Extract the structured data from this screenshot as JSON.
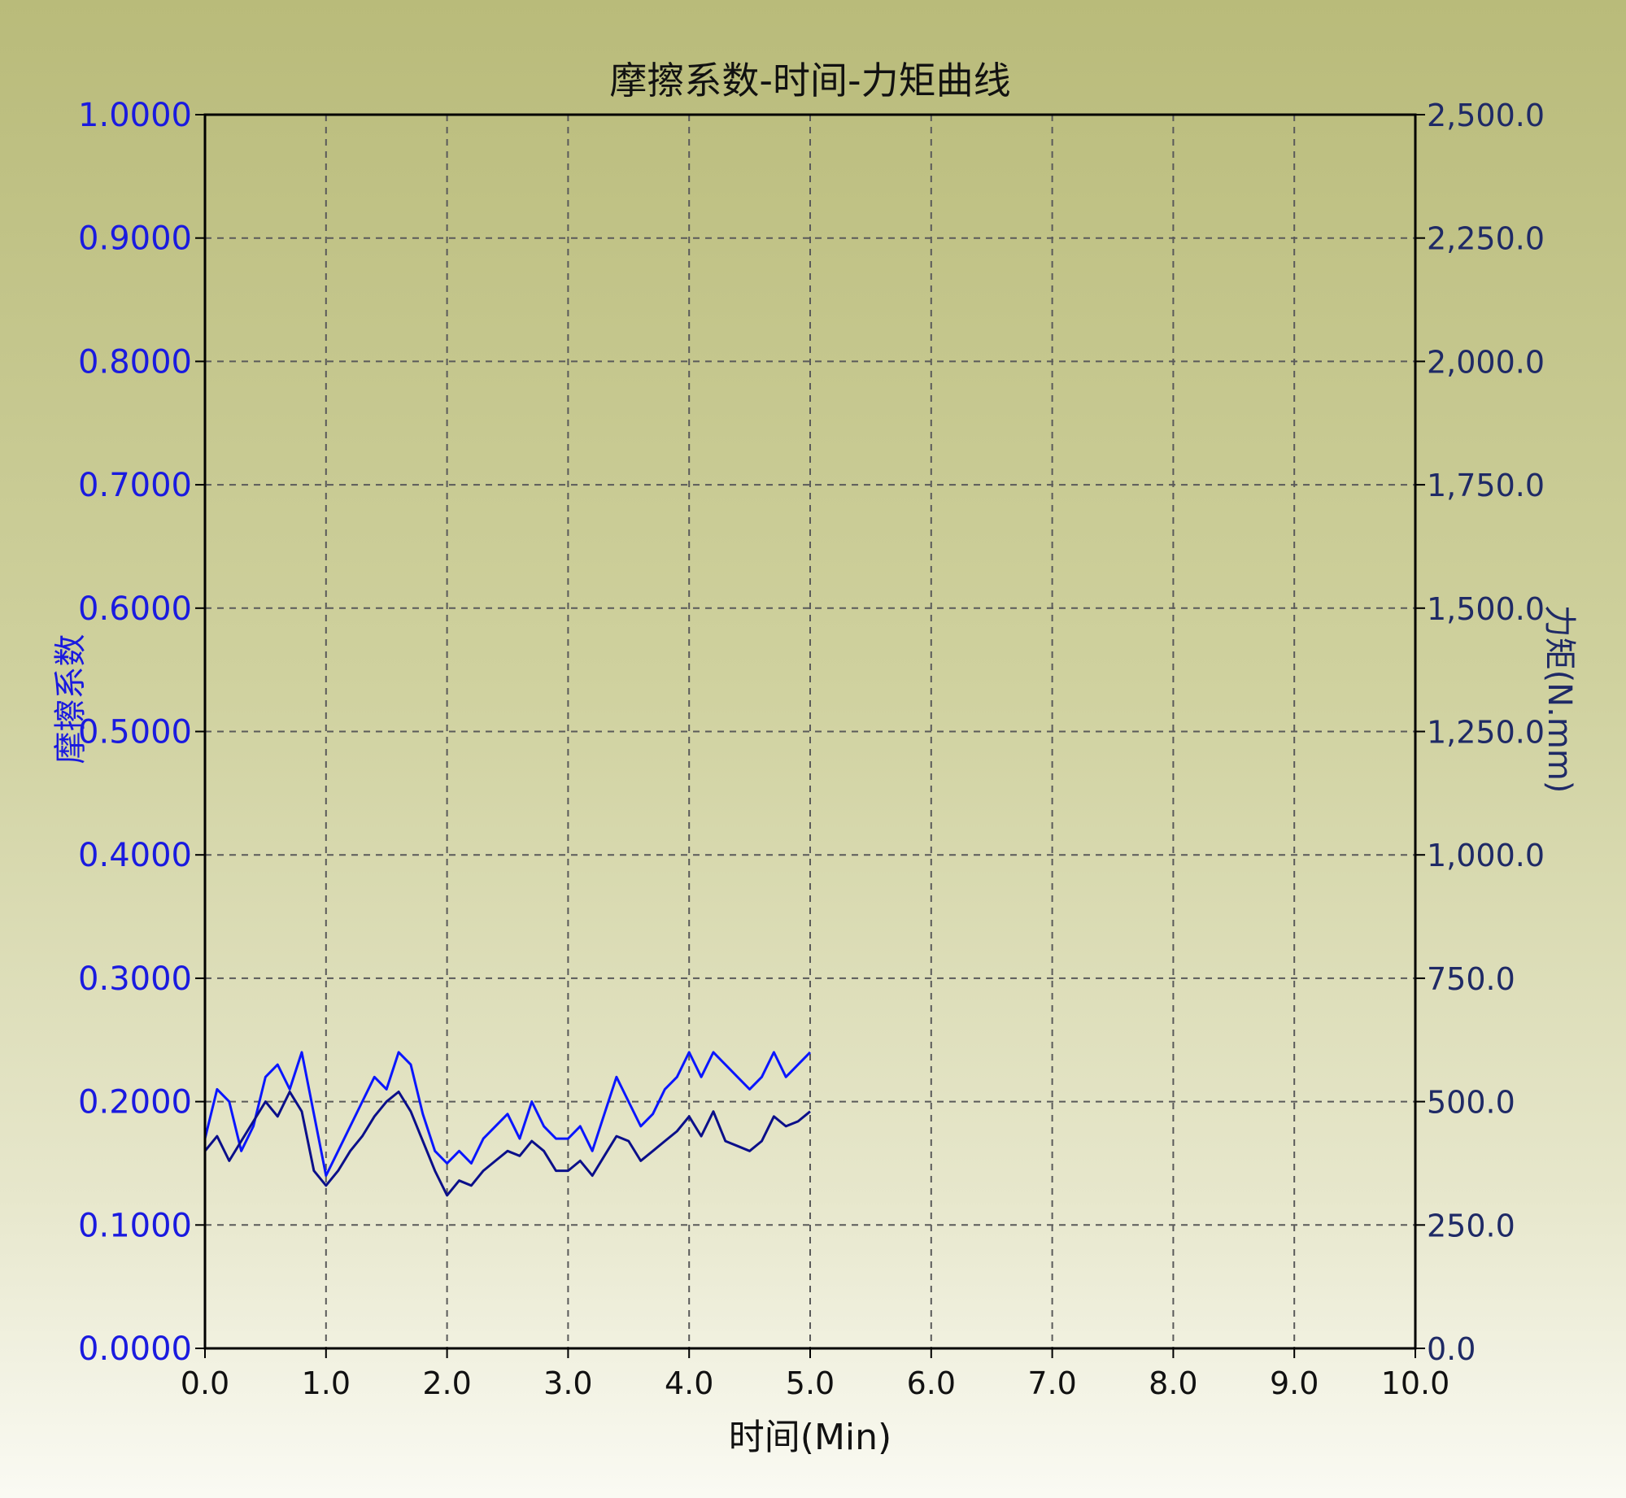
{
  "chart_data": {
    "type": "line",
    "title": "摩擦系数-时间-力矩曲线",
    "xlabel": "时间(Min)",
    "ylabel_left": "摩擦系数",
    "ylabel_right": "力矩(N.mm)",
    "xlim": [
      0,
      10
    ],
    "ylim_left": [
      0,
      1
    ],
    "ylim_right": [
      0,
      2500
    ],
    "x_ticks": [
      "0.0",
      "1.0",
      "2.0",
      "3.0",
      "4.0",
      "5.0",
      "6.0",
      "7.0",
      "8.0",
      "9.0",
      "10.0"
    ],
    "y_left_ticks": [
      "0.0000",
      "0.1000",
      "0.2000",
      "0.3000",
      "0.4000",
      "0.5000",
      "0.6000",
      "0.7000",
      "0.8000",
      "0.9000",
      "1.0000"
    ],
    "y_right_ticks": [
      "0.0",
      "250.0",
      "500.0",
      "750.0",
      "1,000.0",
      "1,250.0",
      "1,500.0",
      "1,750.0",
      "2,000.0",
      "2,250.0",
      "2,500.0"
    ],
    "grid": true,
    "series": [
      {
        "axis": "left",
        "color": "#0a16ff",
        "x": [
          0.0,
          0.1,
          0.2,
          0.3,
          0.4,
          0.5,
          0.6,
          0.7,
          0.8,
          0.9,
          1.0,
          1.1,
          1.2,
          1.3,
          1.4,
          1.5,
          1.6,
          1.7,
          1.8,
          1.9,
          2.0,
          2.1,
          2.2,
          2.3,
          2.4,
          2.5,
          2.6,
          2.7,
          2.8,
          2.9,
          3.0,
          3.1,
          3.2,
          3.3,
          3.4,
          3.5,
          3.6,
          3.7,
          3.8,
          3.9,
          4.0,
          4.1,
          4.2,
          4.3,
          4.4,
          4.5,
          4.6,
          4.7,
          4.8,
          4.9,
          5.0
        ],
        "values": [
          0.17,
          0.21,
          0.2,
          0.16,
          0.18,
          0.22,
          0.23,
          0.21,
          0.24,
          0.19,
          0.14,
          0.16,
          0.18,
          0.2,
          0.22,
          0.21,
          0.24,
          0.23,
          0.19,
          0.16,
          0.15,
          0.16,
          0.15,
          0.17,
          0.18,
          0.19,
          0.17,
          0.2,
          0.18,
          0.17,
          0.17,
          0.18,
          0.16,
          0.19,
          0.22,
          0.2,
          0.18,
          0.19,
          0.21,
          0.22,
          0.24,
          0.22,
          0.24,
          0.23,
          0.22,
          0.21,
          0.22,
          0.24,
          0.22,
          0.23,
          0.24
        ]
      },
      {
        "axis": "right",
        "color": "#0b0f8a",
        "x": [
          0.0,
          0.1,
          0.2,
          0.3,
          0.4,
          0.5,
          0.6,
          0.7,
          0.8,
          0.9,
          1.0,
          1.1,
          1.2,
          1.3,
          1.4,
          1.5,
          1.6,
          1.7,
          1.8,
          1.9,
          2.0,
          2.1,
          2.2,
          2.3,
          2.4,
          2.5,
          2.6,
          2.7,
          2.8,
          2.9,
          3.0,
          3.1,
          3.2,
          3.3,
          3.4,
          3.5,
          3.6,
          3.7,
          3.8,
          3.9,
          4.0,
          4.1,
          4.2,
          4.3,
          4.4,
          4.5,
          4.6,
          4.7,
          4.8,
          4.9,
          5.0
        ],
        "values": [
          400,
          430,
          380,
          420,
          460,
          500,
          470,
          520,
          480,
          360,
          330,
          360,
          400,
          430,
          470,
          500,
          520,
          480,
          420,
          360,
          310,
          340,
          330,
          360,
          380,
          400,
          390,
          420,
          400,
          360,
          360,
          380,
          350,
          390,
          430,
          420,
          380,
          400,
          420,
          440,
          470,
          430,
          480,
          420,
          410,
          400,
          420,
          470,
          450,
          460,
          480
        ]
      }
    ]
  }
}
